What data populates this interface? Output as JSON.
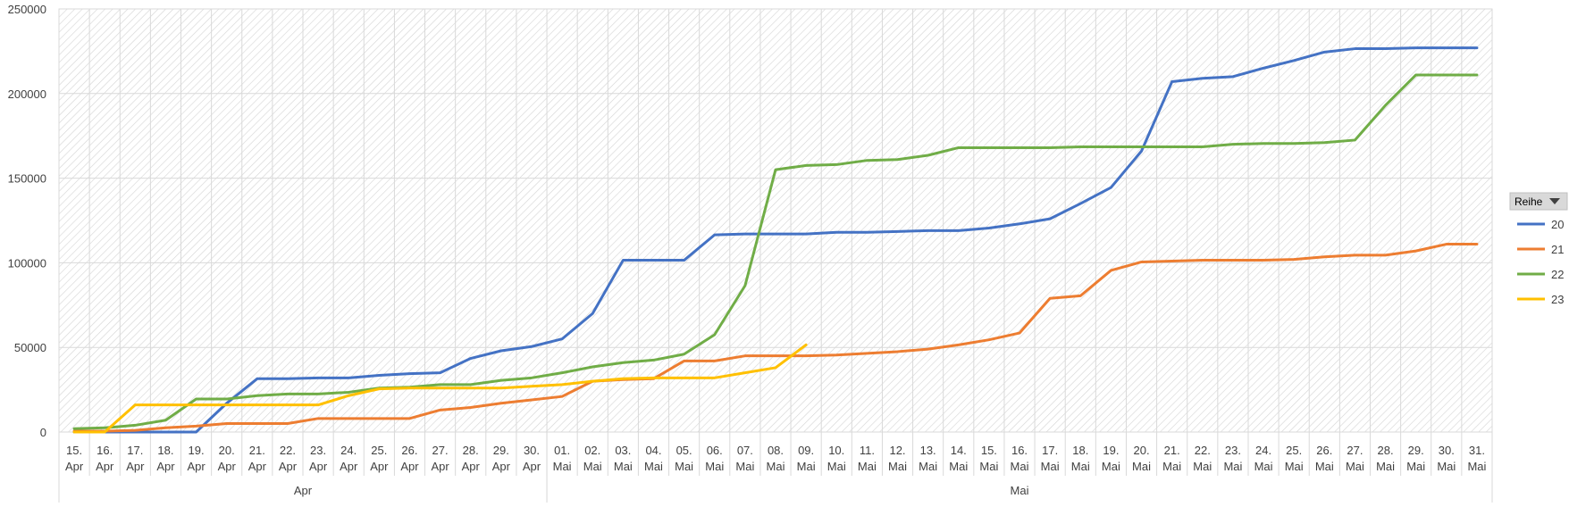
{
  "chart_data": {
    "type": "line",
    "title": "",
    "xlabel": "",
    "ylabel": "",
    "ylim": [
      0,
      250000
    ],
    "yticks": [
      0,
      50000,
      100000,
      150000,
      200000,
      250000
    ],
    "ytick_labels": [
      "0",
      "50000",
      "100000",
      "150000",
      "200000",
      "250000"
    ],
    "grid": true,
    "legend_position": "right",
    "legend_title": "Reihe",
    "legend_button_icon": "dropdown-triangle-icon",
    "months": [
      {
        "label": "Apr",
        "first_index": 0,
        "last_index": 15
      },
      {
        "label": "Mai",
        "first_index": 16,
        "last_index": 46
      }
    ],
    "x_day_labels": [
      "15.",
      "16.",
      "17.",
      "18.",
      "19.",
      "20.",
      "21.",
      "22.",
      "23.",
      "24.",
      "25.",
      "26.",
      "27.",
      "28.",
      "29.",
      "30.",
      "01.",
      "02.",
      "03.",
      "04.",
      "05.",
      "06.",
      "07.",
      "08.",
      "09.",
      "10.",
      "11.",
      "12.",
      "13.",
      "14.",
      "15.",
      "16.",
      "17.",
      "18.",
      "19.",
      "20.",
      "21.",
      "22.",
      "23.",
      "24.",
      "25.",
      "26.",
      "27.",
      "28.",
      "29.",
      "30.",
      "31."
    ],
    "x_month_labels": [
      "Apr",
      "Apr",
      "Apr",
      "Apr",
      "Apr",
      "Apr",
      "Apr",
      "Apr",
      "Apr",
      "Apr",
      "Apr",
      "Apr",
      "Apr",
      "Apr",
      "Apr",
      "Apr",
      "Mai",
      "Mai",
      "Mai",
      "Mai",
      "Mai",
      "Mai",
      "Mai",
      "Mai",
      "Mai",
      "Mai",
      "Mai",
      "Mai",
      "Mai",
      "Mai",
      "Mai",
      "Mai",
      "Mai",
      "Mai",
      "Mai",
      "Mai",
      "Mai",
      "Mai",
      "Mai",
      "Mai",
      "Mai",
      "Mai",
      "Mai",
      "Mai",
      "Mai",
      "Mai",
      "Mai"
    ],
    "series": [
      {
        "name": "20",
        "color": "#4472C4",
        "values": [
          0,
          0,
          0,
          0,
          0,
          17000,
          31500,
          31500,
          32000,
          32000,
          33500,
          34500,
          35000,
          43500,
          48000,
          50500,
          55000,
          70000,
          101500,
          101500,
          101500,
          116500,
          117000,
          117000,
          117000,
          118000,
          118000,
          118500,
          119000,
          119000,
          120500,
          123000,
          126000,
          135000,
          144500,
          166000,
          207000,
          209000,
          210000,
          215000,
          219500,
          224500,
          226500,
          226500,
          227000,
          227000,
          227000
        ]
      },
      {
        "name": "21",
        "color": "#ED7D31",
        "values": [
          500,
          500,
          1000,
          2500,
          3500,
          5000,
          5000,
          5000,
          8000,
          8000,
          8000,
          8000,
          13000,
          14500,
          17000,
          19000,
          21000,
          30000,
          31000,
          31500,
          42000,
          42000,
          45000,
          45000,
          45000,
          45500,
          46500,
          47500,
          49000,
          51500,
          54500,
          58500,
          79000,
          80500,
          95500,
          100500,
          101000,
          101500,
          101500,
          101500,
          102000,
          103500,
          104500,
          104500,
          107000,
          111000,
          111000
        ]
      },
      {
        "name": "22",
        "color": "#70AD47",
        "values": [
          2000,
          2500,
          4000,
          7000,
          19500,
          19500,
          21500,
          22500,
          22500,
          23500,
          26000,
          26500,
          28000,
          28000,
          30500,
          32000,
          35000,
          38500,
          41000,
          42500,
          46000,
          57500,
          86500,
          155000,
          157500,
          158000,
          160500,
          161000,
          163500,
          168000,
          168000,
          168000,
          168000,
          168500,
          168500,
          168500,
          168500,
          168500,
          170000,
          170500,
          170500,
          171000,
          172500,
          193000,
          211000,
          211000,
          211000
        ]
      },
      {
        "name": "23",
        "color": "#FFC000",
        "values": [
          0,
          0,
          16000,
          16000,
          16000,
          16000,
          16000,
          16000,
          16000,
          21500,
          25500,
          26000,
          26000,
          26000,
          26000,
          27000,
          28000,
          30000,
          31500,
          32000,
          32000,
          32000,
          35000,
          38000,
          51500,
          null,
          null,
          null,
          null,
          null,
          null,
          null,
          null,
          null,
          null,
          null,
          null,
          null,
          null,
          null,
          null,
          null,
          null,
          null,
          null,
          null,
          null
        ]
      }
    ]
  }
}
